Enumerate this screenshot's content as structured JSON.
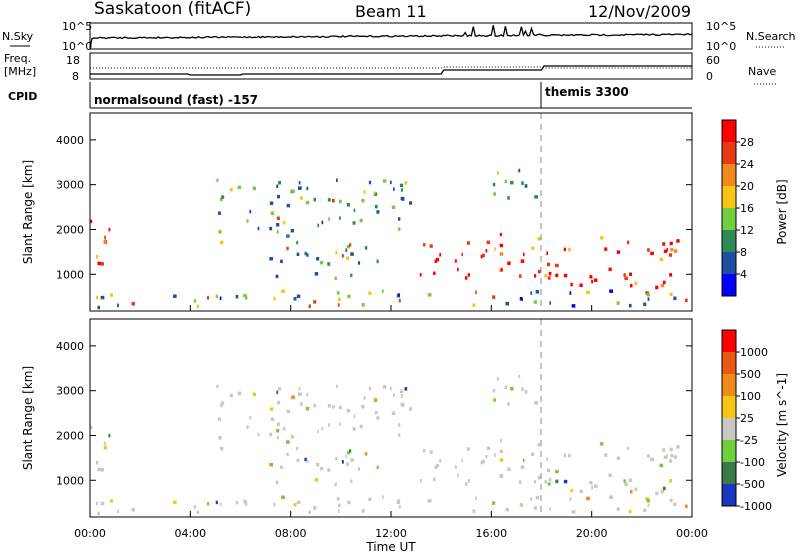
{
  "header": {
    "title": "Saskatoon (fitACF)",
    "beam": "Beam 11",
    "date": "12/Nov/2009"
  },
  "aux_panels": {
    "nsky_label": "N.Sky",
    "nsky_tick_top": "10^5",
    "nsky_tick_bottom": "10^0",
    "nsearch_label": "N.Search",
    "freq_label_line1": "Freq.",
    "freq_label_line2": "[MHz]",
    "freq_ticks": [
      "18",
      "8"
    ],
    "nave_label": "Nave",
    "nave_ticks": [
      "60",
      "0"
    ],
    "cpid_label": "CPID",
    "cpid_1": "normalsound (fast) -157",
    "cpid_2": "themis 3300"
  },
  "colors": {
    "scatter_white": "#ffffff",
    "ground_scatter_gray": "#c8c8c0",
    "marker_dashed": "#888888"
  },
  "chart_data": [
    {
      "type": "heatmap",
      "name": "Power",
      "x_range": [
        "00:00",
        "24:00"
      ],
      "x_ticks": [
        "00:00",
        "04:00",
        "08:00",
        "12:00",
        "16:00",
        "20:00",
        "00:00"
      ],
      "ylabel": "Slant Range [km]",
      "ylim": [
        180,
        4600
      ],
      "y_ticks": [
        1000,
        2000,
        3000,
        4000
      ],
      "colorbar": {
        "label": "Power [dB]",
        "ticks": [
          4,
          8,
          12,
          16,
          20,
          24,
          28
        ],
        "colors": [
          "#0000ff",
          "#1e4fa0",
          "#2e8b57",
          "#6fcf3f",
          "#f5c518",
          "#f08a1c",
          "#e83a10",
          "#ff0000"
        ]
      }
    },
    {
      "type": "heatmap",
      "name": "Velocity",
      "x_range": [
        "00:00",
        "24:00"
      ],
      "x_ticks": [
        "00:00",
        "04:00",
        "08:00",
        "12:00",
        "16:00",
        "20:00",
        "00:00"
      ],
      "xlabel": "Time UT",
      "ylabel": "Slant Range [km]",
      "ylim": [
        180,
        4600
      ],
      "y_ticks": [
        1000,
        2000,
        3000,
        4000
      ],
      "colorbar": {
        "label": "Velocity [m s^-1]",
        "ticks": [
          1000,
          500,
          100,
          25,
          -25,
          -100,
          -500,
          -1000
        ],
        "colors": [
          "#1838c0",
          "#3a7a4a",
          "#6fcf3f",
          "#c8c8c0",
          "#f5c518",
          "#f08a1c",
          "#e85a10",
          "#ff0000"
        ]
      }
    }
  ],
  "echo_regions": [
    {
      "t0": 0.0,
      "t1": 0.8,
      "r0": 700,
      "r1": 2300,
      "kind": "strong"
    },
    {
      "t0": 0.2,
      "t1": 24.0,
      "r0": 250,
      "r1": 620,
      "kind": "weak"
    },
    {
      "t0": 5.0,
      "t1": 8.5,
      "r0": 1700,
      "r1": 3100,
      "kind": "medium"
    },
    {
      "t0": 8.5,
      "t1": 13.0,
      "r0": 1900,
      "r1": 3100,
      "kind": "medium"
    },
    {
      "t0": 7.0,
      "t1": 11.5,
      "r0": 900,
      "r1": 1700,
      "kind": "medium"
    },
    {
      "t0": 13.0,
      "t1": 18.0,
      "r0": 900,
      "r1": 1900,
      "kind": "strong"
    },
    {
      "t0": 18.0,
      "t1": 23.6,
      "r0": 700,
      "r1": 1850,
      "kind": "strong"
    },
    {
      "t0": 16.0,
      "t1": 18.0,
      "r0": 2600,
      "r1": 3400,
      "kind": "medium"
    }
  ]
}
